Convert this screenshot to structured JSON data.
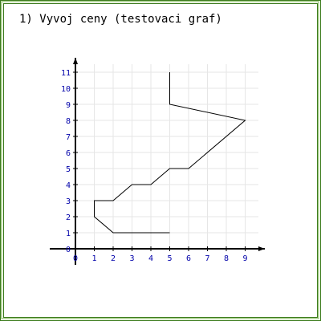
{
  "chart_data": {
    "type": "line",
    "title": "1) Vyvoj ceny (testovaci graf)",
    "xlabel": "",
    "ylabel": "",
    "xlim": [
      0,
      9
    ],
    "ylim": [
      0,
      11
    ],
    "x_ticks": [
      0,
      1,
      2,
      3,
      4,
      5,
      6,
      7,
      8,
      9
    ],
    "y_ticks": [
      0,
      1,
      2,
      3,
      4,
      5,
      6,
      7,
      8,
      9,
      10,
      11
    ],
    "grid": true,
    "series": [
      {
        "x": [
          5,
          2,
          1,
          1,
          2,
          3,
          4,
          5,
          6,
          9,
          5,
          5
        ],
        "y": [
          1,
          1,
          2,
          3,
          3,
          4,
          4,
          5,
          5,
          8,
          9,
          11
        ]
      }
    ]
  },
  "colors": {
    "frame_outer": "#3a7a1a",
    "frame_inner": "#b7d7a0",
    "grid": "#e6e6e6",
    "axis": "#000000",
    "tick_label": "#0000aa",
    "line": "#000000"
  }
}
